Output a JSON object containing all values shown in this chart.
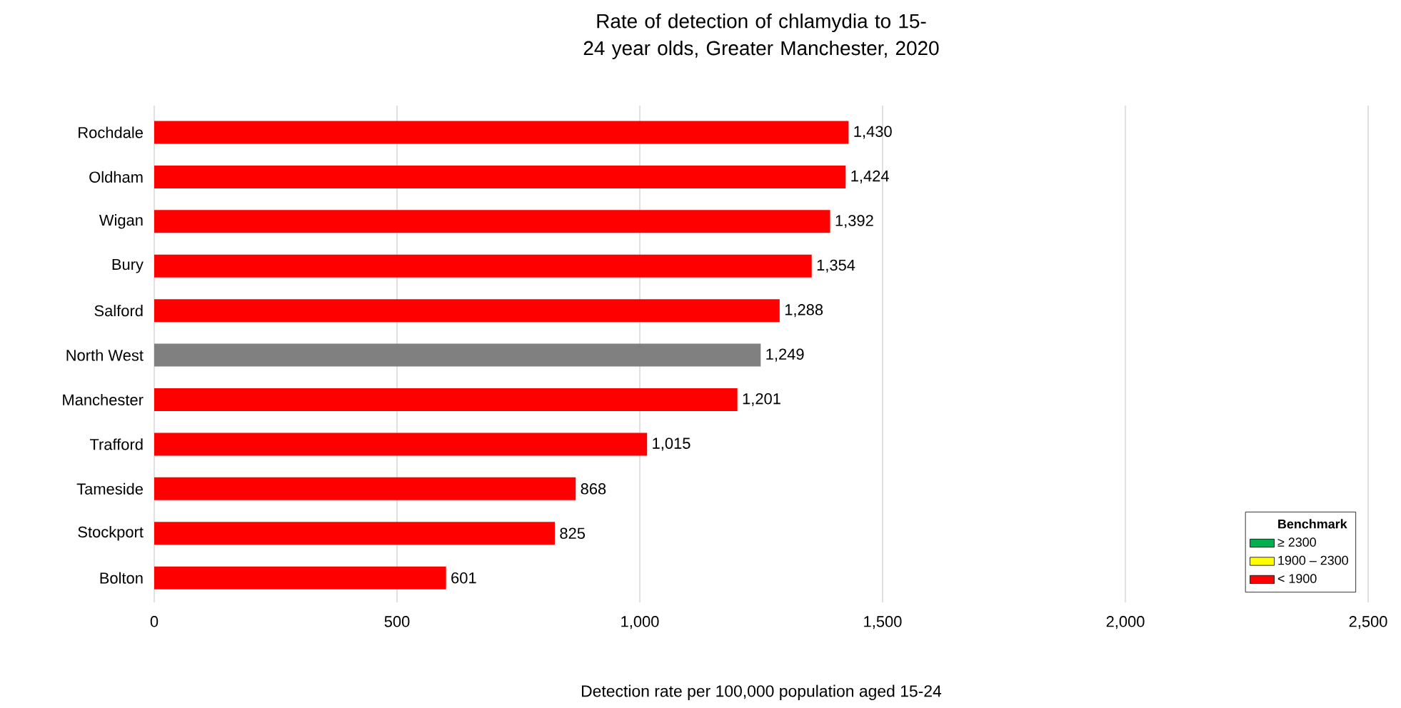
{
  "chart_data": {
    "type": "bar",
    "orientation": "horizontal",
    "title": "Rate of detection of chlamydia to 15-24 year olds, Greater Manchester, 2020",
    "xlabel": "Detection rate per 100,000 population aged 15-24",
    "categories": [
      "Rochdale",
      "Oldham",
      "Wigan",
      "Bury",
      "Salford",
      "North West",
      "Manchester",
      "Trafford",
      "Tameside",
      "Stockport",
      "Bolton"
    ],
    "series": [
      {
        "name": "≥ 2300",
        "color": "#00b050",
        "values": [
          null,
          null,
          null,
          null,
          null,
          null,
          null,
          null,
          null,
          null,
          null
        ]
      },
      {
        "name": "1900 – 2300",
        "color": "#ffff00",
        "values": [
          null,
          null,
          null,
          null,
          null,
          null,
          null,
          null,
          null,
          null,
          null
        ]
      },
      {
        "name": "< 1900",
        "color": "#ff0000",
        "values": [
          1430,
          1424,
          1392,
          1354,
          1288,
          null,
          1201,
          1015,
          868,
          825,
          601
        ],
        "value_labels": [
          "1,430",
          "1,424",
          "1,392",
          "1,354",
          "1,288",
          null,
          "1,201",
          "1,015",
          "868",
          "825",
          "601"
        ]
      },
      {
        "color": "#808080",
        "values": [
          null,
          null,
          null,
          null,
          null,
          1249,
          null,
          null,
          null,
          null,
          null
        ],
        "value_labels": [
          null,
          null,
          null,
          null,
          null,
          "1,249",
          null,
          null,
          null,
          null,
          null
        ]
      }
    ],
    "legend_title": "Benchmark",
    "legend": "bottom right",
    "grid": "x",
    "xlim": [
      0,
      2500
    ],
    "xticks": [
      0,
      500,
      {
        "value": 1000,
        "label": "1,000"
      },
      {
        "value": 1500,
        "label": "1,500"
      },
      {
        "value": 2000,
        "label": "2,000"
      },
      {
        "value": 2500,
        "label": "2,500"
      }
    ]
  }
}
